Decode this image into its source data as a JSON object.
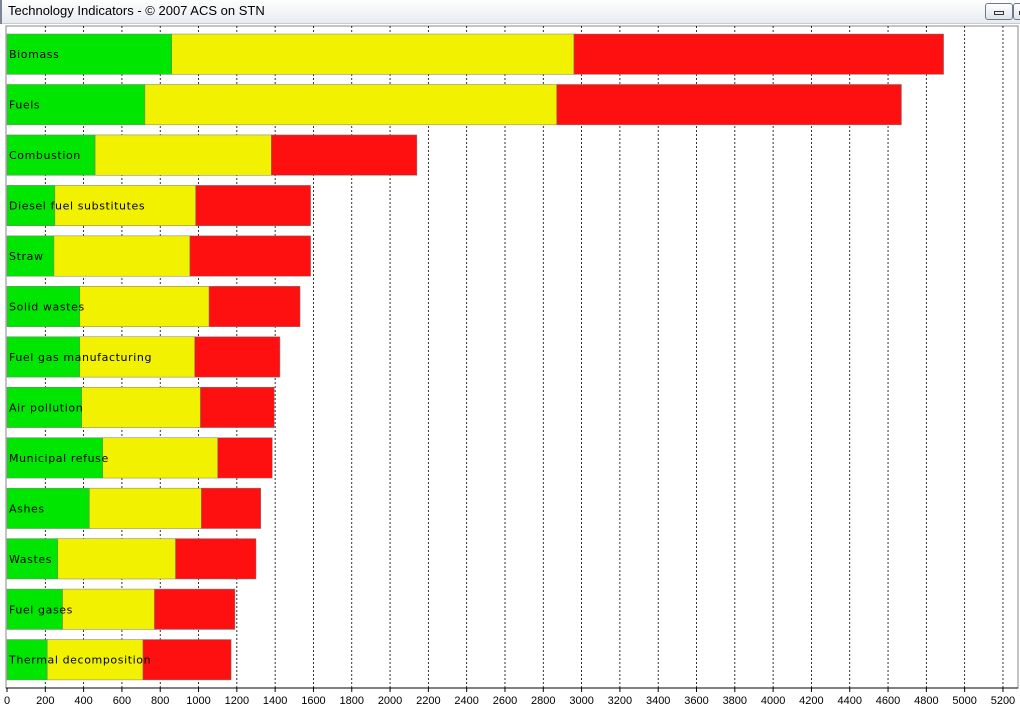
{
  "window": {
    "title": "Technology Indicators - © 2007 ACS on STN",
    "buttons": [
      {
        "name": "minimize-button",
        "icon": "minimize-icon"
      },
      {
        "name": "maximize-button",
        "icon": "restore-icon"
      }
    ]
  },
  "chart_data": {
    "type": "bar",
    "orientation": "horizontal",
    "stacked": true,
    "categories": [
      "Biomass",
      "Fuels",
      "Combustion",
      "Diesel fuel substitutes",
      "Straw",
      "Solid wastes",
      "Fuel gas manufacturing",
      "Air pollution",
      "Municipal refuse",
      "Ashes",
      "Wastes",
      "Fuel gases",
      "Thermal decomposition"
    ],
    "series": [
      {
        "color": "#00e600",
        "values": [
          860,
          720,
          460,
          250,
          245,
          380,
          380,
          390,
          500,
          430,
          265,
          290,
          210
        ]
      },
      {
        "color": "#f2f200",
        "values": [
          2100,
          2150,
          920,
          735,
          710,
          675,
          600,
          620,
          600,
          585,
          615,
          480,
          500
        ]
      },
      {
        "color": "#ff1010",
        "values": [
          1930,
          1800,
          760,
          600,
          630,
          475,
          445,
          385,
          285,
          310,
          420,
          420,
          460
        ]
      }
    ],
    "xticks": [
      0,
      200,
      400,
      600,
      800,
      1000,
      1200,
      1400,
      1600,
      1800,
      2000,
      2200,
      2400,
      2600,
      2800,
      3000,
      3200,
      3400,
      3600,
      3800,
      4000,
      4200,
      4400,
      4600,
      4800,
      5000,
      5200
    ],
    "xlim": [
      0,
      5200
    ],
    "xlabel": "",
    "ylabel": "",
    "title": "",
    "grid": "vertical dashed"
  }
}
